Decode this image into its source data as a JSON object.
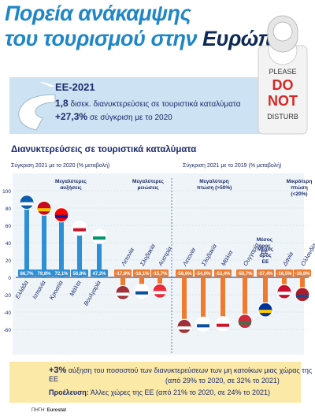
{
  "header": {
    "title_line1": "Πορεία ανάκαμψης",
    "title_line2_prefix": "του τουρισμού στην",
    "title_line2_accent": "Ευρώπη"
  },
  "door_sign": {
    "line1": "PLEASE",
    "line2": "DO",
    "line3": "NOT",
    "line4": "DISTURB"
  },
  "eu_box": {
    "title": "ΕΕ-2021",
    "line1_value": "1,8",
    "line1_text": "δισεκ. διανυκτερεύσεις σε τουριστικά καταλύματα",
    "line2_value": "+27,3%",
    "line2_text": "σε σύγκριση με το 2020"
  },
  "section_title": "Διανυκτερεύσεις σε τουριστικά καταλύματα",
  "subtitle_left": "Σύγκριση 2021 με το 2020 (% μεταβολή)",
  "subtitle_right": "Σύγκριση 2021 με το 2019 (% μεταβολή)",
  "groups": {
    "largest_increases": "Μεγαλύτερες αυξήσεις",
    "largest_decreases": "Μεγαλύτερες μειώσεις",
    "largest_drop": "Μεγαλύτερη πτώση (>50%)",
    "eu_average": "Μέσος όρος ΕΕ",
    "smallest_drop": "Μικρότερη πτώση (<20%)"
  },
  "chart_data": {
    "type": "bar",
    "ylim": [
      -60,
      100
    ],
    "yticks": [
      100,
      80,
      60,
      40,
      20,
      0,
      -20,
      -40,
      -60
    ],
    "panels": [
      {
        "name": "Σύγκριση 2021 με το 2020 (% μεταβολή)",
        "categories": [
          "Ελλάδα",
          "Ισπανία",
          "Κροατία",
          "Μάλτα",
          "Βουλγαρία",
          "Λετονία",
          "Σλοβακία",
          "Αυστρία"
        ],
        "values": [
          86.7,
          79.8,
          72.1,
          56.8,
          47.2,
          -17.6,
          -16.1,
          -15.7
        ],
        "labels": [
          "86,7",
          "79,8",
          "72,1",
          "56,8",
          "47,2",
          "-17,6",
          "-16,1",
          "-15,7"
        ]
      },
      {
        "name": "Σύγκριση 2021 με το 2019 (% μεταβολή)",
        "categories": [
          "Λετονία",
          "Σλοβακία",
          "Μάλτα",
          "Ουγγαρία",
          "Μέσος όρος ΕΕ",
          "Δανία",
          "Ολλανδία"
        ],
        "values": [
          -56.6,
          -54.0,
          -53.4,
          -50.7,
          -37.4,
          -16.5,
          -19.8
        ],
        "labels": [
          "-56,6",
          "-54,0",
          "-53,4",
          "-50,7",
          "-37,4",
          "-16,5",
          "-19,8"
        ]
      }
    ]
  },
  "bottom": {
    "line1_value": "+3%",
    "line1_text": "αύξηση του ποσοστού των διανυκτερεύσεων των μη κατοίκων μιας χώρας της ΕΕ",
    "line2": "(από 29% το 2020, σε 32% το 2021)",
    "line3_label": "Προέλευση:",
    "line3_text": "Άλλες χώρες της ΕΕ (από 21% το 2020, σε 24% το 2021)"
  },
  "source_label": "ΠΗΓΗ:",
  "source_value": "Eurostat",
  "colors": {
    "blue": "#2e8fd6",
    "orange": "#f07b2f",
    "navy": "#1b2a6b",
    "accent": "#1f86c7"
  }
}
